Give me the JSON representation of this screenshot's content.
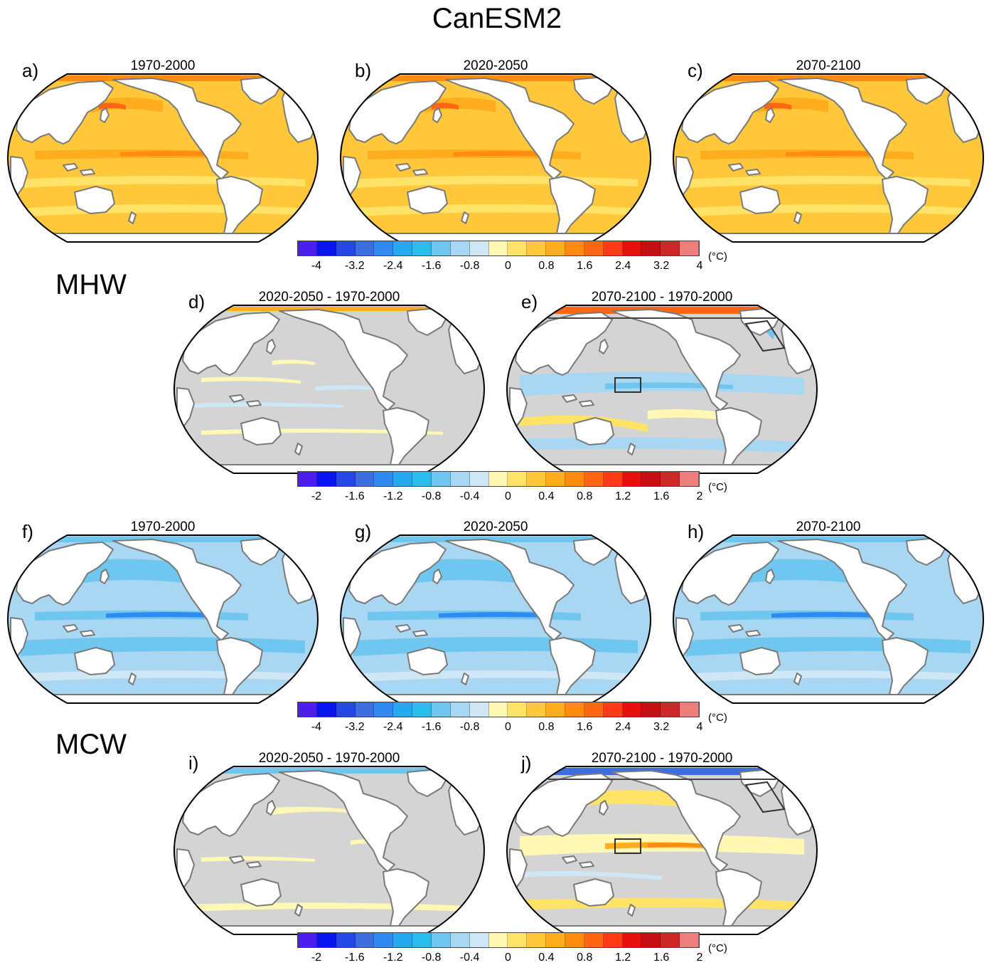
{
  "title": "CanESM2",
  "sections": [
    {
      "name": "MHW",
      "top": 380
    },
    {
      "name": "MCW",
      "top": 1025
    }
  ],
  "colorbars": [
    {
      "id": "cb1",
      "ticks": [
        "-4",
        "-3.2",
        "-2.4",
        "-1.6",
        "-0.8",
        "0",
        "0.8",
        "1.6",
        "2.4",
        "3.2",
        "4"
      ],
      "unit": "(°C)"
    },
    {
      "id": "cb2",
      "ticks": [
        "-2",
        "-1.6",
        "-1.2",
        "-0.8",
        "-0.4",
        "0",
        "0.4",
        "0.8",
        "1.2",
        "1.6",
        "2"
      ],
      "unit": "(°C)"
    },
    {
      "id": "cb3",
      "ticks": [
        "-4",
        "-3.2",
        "-2.4",
        "-1.6",
        "-0.8",
        "0",
        "0.8",
        "1.6",
        "2.4",
        "3.2",
        "4"
      ],
      "unit": "(°C)"
    },
    {
      "id": "cb4",
      "ticks": [
        "-2",
        "-1.6",
        "-1.2",
        "-0.8",
        "-0.4",
        "0",
        "0.4",
        "0.8",
        "1.2",
        "1.6",
        "2"
      ],
      "unit": "(°C)"
    }
  ],
  "palette": [
    "#4b1eeb",
    "#0a14f0",
    "#2646e6",
    "#3c6edf",
    "#2f8af2",
    "#27a9f1",
    "#2bbcf0",
    "#6fc6ef",
    "#a9d6f1",
    "#cfe6f5",
    "#fff8b4",
    "#ffe266",
    "#ffc83a",
    "#ffad1c",
    "#ff8c11",
    "#ff6614",
    "#ff3a16",
    "#e8100f",
    "#c50f14",
    "#cc2828",
    "#ee7e7e"
  ],
  "panels": [
    {
      "letter": "a)",
      "title": "1970-2000",
      "kind": "mhw-abs"
    },
    {
      "letter": "b)",
      "title": "2020-2050",
      "kind": "mhw-abs"
    },
    {
      "letter": "c)",
      "title": "2070-2100",
      "kind": "mhw-abs"
    },
    {
      "letter": "d)",
      "title": "2020-2050 - 1970-2000",
      "kind": "mhw-diff1"
    },
    {
      "letter": "e)",
      "title": "2070-2100 - 1970-2000",
      "kind": "mhw-diff2"
    },
    {
      "letter": "f)",
      "title": "1970-2000",
      "kind": "mcw-abs"
    },
    {
      "letter": "g)",
      "title": "2020-2050",
      "kind": "mcw-abs"
    },
    {
      "letter": "h)",
      "title": "2070-2100",
      "kind": "mcw-abs"
    },
    {
      "letter": "i)",
      "title": "2020-2050 - 1970-2000",
      "kind": "mcw-diff1"
    },
    {
      "letter": "j)",
      "title": "2070-2100 - 1970-2000",
      "kind": "mcw-diff2"
    }
  ]
}
